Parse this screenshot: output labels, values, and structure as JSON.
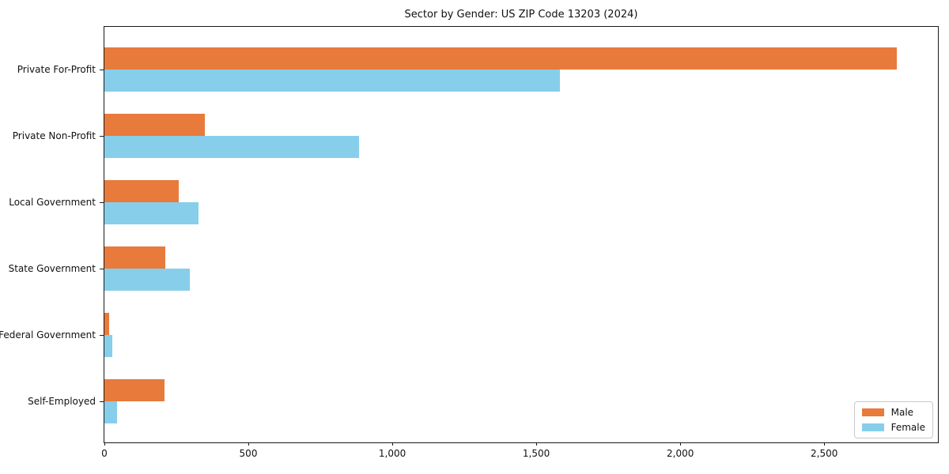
{
  "chart_data": {
    "type": "bar",
    "orientation": "horizontal",
    "title": "Sector by Gender: US ZIP Code 13203 (2024)",
    "categories": [
      "Private For-Profit",
      "Private Non-Profit",
      "Local Government",
      "State Government",
      "Federal Government",
      "Self-Employed"
    ],
    "series": [
      {
        "name": "Male",
        "color": "#e87a3c",
        "values": [
          2753,
          348,
          258,
          211,
          16,
          209
        ]
      },
      {
        "name": "Female",
        "color": "#87ceeb",
        "values": [
          1582,
          885,
          327,
          296,
          26,
          43
        ]
      }
    ],
    "xlabel": "",
    "ylabel": "",
    "xlim": [
      0,
      2895
    ],
    "xticks": [
      {
        "value": 0,
        "label": "0"
      },
      {
        "value": 500,
        "label": "500"
      },
      {
        "value": 1000,
        "label": "1,000"
      },
      {
        "value": 1500,
        "label": "1,500"
      },
      {
        "value": 2000,
        "label": "2,000"
      },
      {
        "value": 2500,
        "label": "2,500"
      }
    ],
    "grid": false,
    "legend": {
      "position": "lower-right",
      "entries": [
        {
          "label": "Male",
          "color": "#e87a3c"
        },
        {
          "label": "Female",
          "color": "#87ceeb"
        }
      ]
    },
    "colors": {
      "background": "#ffffff",
      "axis": "#1a1a1a",
      "text": "#111111",
      "legend_border": "#c9c9c9"
    }
  }
}
